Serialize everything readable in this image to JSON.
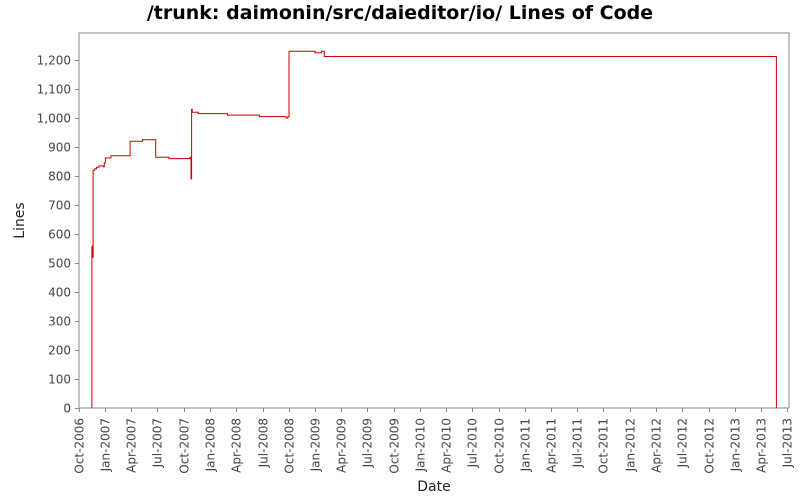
{
  "chart_data": {
    "type": "line",
    "title": "/trunk: daimonin/src/daieditor/io/ Lines of Code",
    "xlabel": "Date",
    "ylabel": "Lines",
    "ylim": [
      0,
      1200
    ],
    "yticks": [
      0,
      100,
      200,
      300,
      400,
      500,
      600,
      700,
      800,
      900,
      1000,
      1100,
      1200
    ],
    "ytick_labels": [
      "0",
      "100",
      "200",
      "300",
      "400",
      "500",
      "600",
      "700",
      "800",
      "900",
      "1,000",
      "1,100",
      "1,200"
    ],
    "xticks": [
      "2006-10-01",
      "2007-01-01",
      "2007-04-01",
      "2007-07-01",
      "2007-10-01",
      "2008-01-01",
      "2008-04-01",
      "2008-07-01",
      "2008-10-01",
      "2009-01-01",
      "2009-04-01",
      "2009-07-01",
      "2009-10-01",
      "2010-01-01",
      "2010-04-01",
      "2010-07-01",
      "2010-10-01",
      "2011-01-01",
      "2011-04-01",
      "2011-07-01",
      "2011-10-01",
      "2012-01-01",
      "2012-04-01",
      "2012-07-01",
      "2012-10-01",
      "2013-01-01",
      "2013-04-01",
      "2013-07-01"
    ],
    "xtick_labels": [
      "Oct-2006",
      "Jan-2007",
      "Apr-2007",
      "Jul-2007",
      "Oct-2007",
      "Jan-2008",
      "Apr-2008",
      "Jul-2008",
      "Oct-2008",
      "Jan-2009",
      "Apr-2009",
      "Jul-2009",
      "Oct-2009",
      "Jan-2010",
      "Apr-2010",
      "Jul-2010",
      "Oct-2010",
      "Jan-2011",
      "Apr-2011",
      "Jul-2011",
      "Oct-2011",
      "Jan-2012",
      "Apr-2012",
      "Jul-2012",
      "Oct-2012",
      "Jan-2013",
      "Apr-2013",
      "Jul-2013"
    ],
    "grid": false,
    "series": [
      {
        "color": "#cc0000",
        "step": true,
        "points": [
          [
            "2006-11-15",
            0
          ],
          [
            "2006-11-15",
            555
          ],
          [
            "2006-11-17",
            560
          ],
          [
            "2006-11-18",
            520
          ],
          [
            "2006-11-19",
            820
          ],
          [
            "2006-11-25",
            825
          ],
          [
            "2006-12-01",
            830
          ],
          [
            "2006-12-10",
            835
          ],
          [
            "2006-12-25",
            832
          ],
          [
            "2006-12-28",
            845
          ],
          [
            "2007-01-01",
            862
          ],
          [
            "2007-01-20",
            870
          ],
          [
            "2007-03-28",
            920
          ],
          [
            "2007-05-10",
            925
          ],
          [
            "2007-06-25",
            865
          ],
          [
            "2007-08-10",
            860
          ],
          [
            "2007-10-22",
            865
          ],
          [
            "2007-10-26",
            790
          ],
          [
            "2007-10-28",
            1030
          ],
          [
            "2007-10-30",
            1020
          ],
          [
            "2007-11-20",
            1015
          ],
          [
            "2008-03-01",
            1010
          ],
          [
            "2008-06-20",
            1005
          ],
          [
            "2008-09-20",
            1000
          ],
          [
            "2008-09-27",
            1005
          ],
          [
            "2008-10-01",
            1230
          ],
          [
            "2008-12-31",
            1225
          ],
          [
            "2009-01-22",
            1230
          ],
          [
            "2009-02-01",
            1212
          ],
          [
            "2013-05-25",
            1212
          ],
          [
            "2013-05-25",
            0
          ]
        ]
      }
    ]
  }
}
